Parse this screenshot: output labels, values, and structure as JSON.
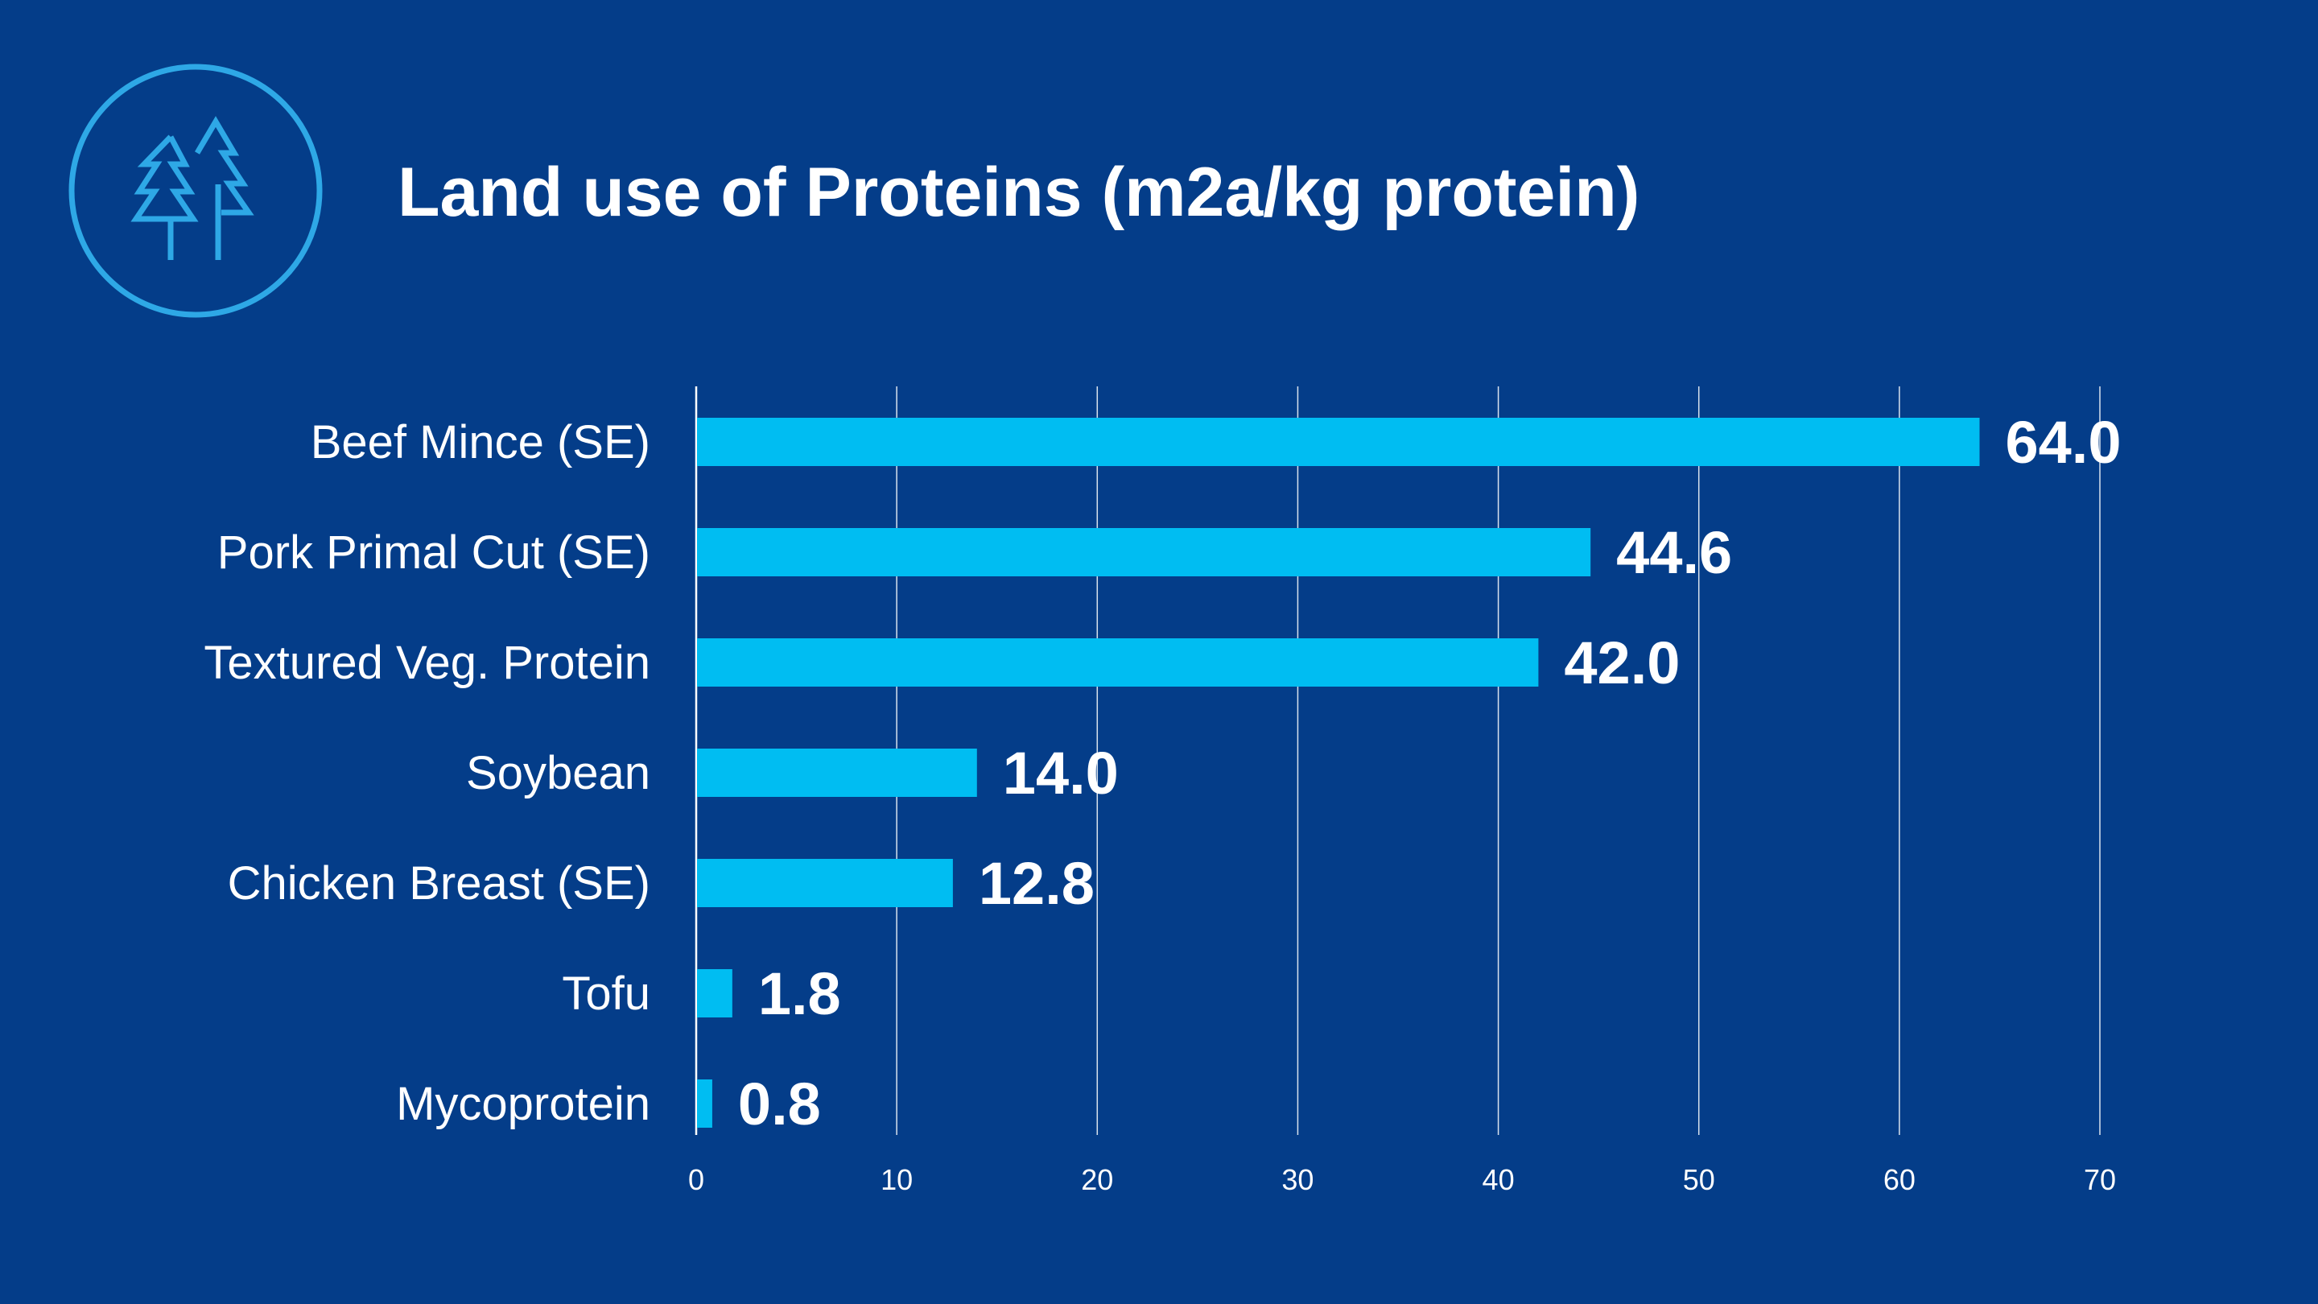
{
  "title": "Land use of Proteins (m2a/kg protein)",
  "colors": {
    "background": "#043D89",
    "bar": "#00BDF2",
    "icon": "#2EA8E6",
    "text": "#FFFFFF",
    "grid": "#FFFFFF"
  },
  "icon": "trees-icon",
  "chart_data": {
    "type": "bar",
    "orientation": "horizontal",
    "title": "Land use of Proteins (m2a/kg protein)",
    "categories": [
      "Beef Mince (SE)",
      "Pork Primal Cut (SE)",
      "Textured Veg. Protein",
      "Soybean",
      "Chicken Breast (SE)",
      "Tofu",
      "Mycoprotein"
    ],
    "values": [
      64.0,
      44.6,
      42.0,
      14.0,
      12.8,
      1.8,
      0.8
    ],
    "data_labels": [
      "64.0",
      "44.6",
      "42.0",
      "14.0",
      "12.8",
      "1.8",
      "0.8"
    ],
    "xlim": [
      0,
      70
    ],
    "xticks": [
      0,
      10,
      20,
      30,
      40,
      50,
      60,
      70
    ],
    "xlabel": "",
    "ylabel": "",
    "grid": "vertical",
    "legend": "none"
  }
}
